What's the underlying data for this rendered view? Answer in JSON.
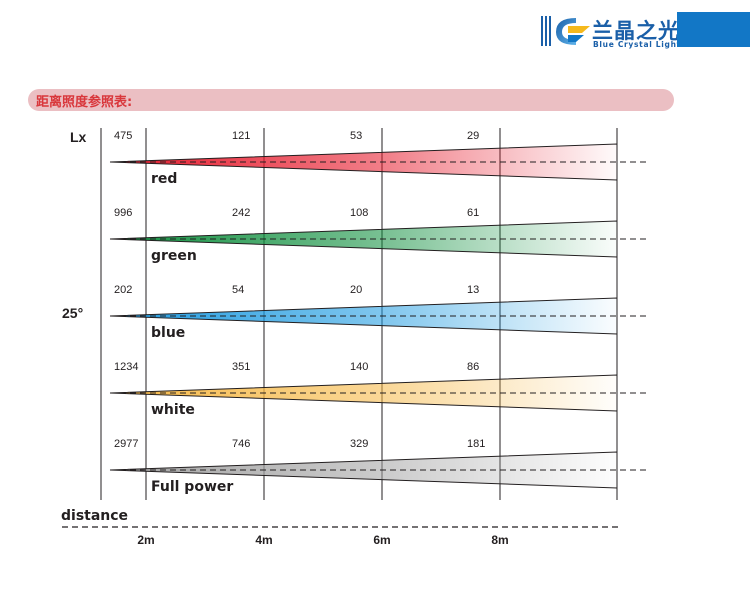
{
  "brand": {
    "name": "兰晶之光",
    "tagline": "Blue Crystal Light",
    "accent": "#1277c6"
  },
  "title": "距离照度参照表:",
  "chart_data": {
    "type": "beam-illuminance",
    "y_label": "Lx",
    "x_label": "distance",
    "beam_angle": "25°",
    "distances": [
      "2m",
      "4m",
      "6m",
      "8m"
    ],
    "series": [
      {
        "name": "red",
        "color": "#e6192b",
        "values": [
          "475",
          "121",
          "53",
          "29"
        ]
      },
      {
        "name": "green",
        "color": "#0f8f3e",
        "values": [
          "996",
          "242",
          "108",
          "61"
        ]
      },
      {
        "name": "blue",
        "color": "#1d9ae0",
        "values": [
          "202",
          "54",
          "20",
          "13"
        ]
      },
      {
        "name": "white",
        "color": "#f6b845",
        "values": [
          "1234",
          "351",
          "140",
          "86"
        ]
      },
      {
        "name": "Full power",
        "color": "#a3a3a3",
        "values": [
          "2977",
          "746",
          "329",
          "181"
        ]
      }
    ]
  }
}
